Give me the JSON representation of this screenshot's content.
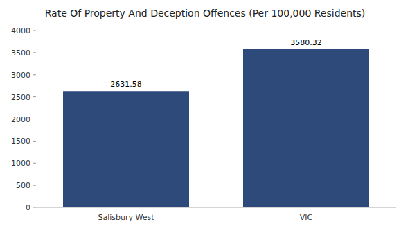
{
  "chart_data": {
    "type": "bar",
    "title": "Rate Of Property And Deception Offences (Per 100,000 Residents)",
    "categories": [
      "Salisbury West",
      "VIC"
    ],
    "values": [
      2631.58,
      3580.32
    ],
    "color": "#2d4a7a",
    "ylim": [
      0,
      4000
    ],
    "yticks": [
      0,
      500,
      1000,
      1500,
      2000,
      2500,
      3000,
      3500,
      4000
    ],
    "grid": false,
    "data_labels": true
  }
}
